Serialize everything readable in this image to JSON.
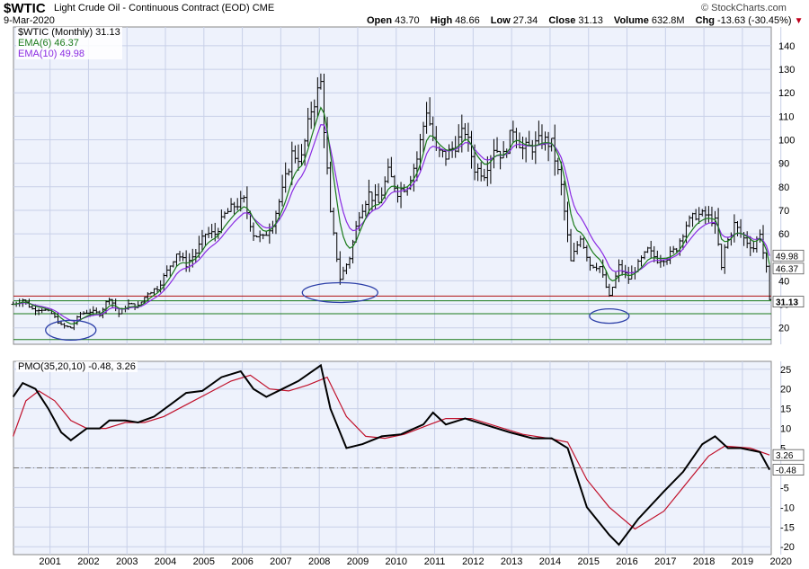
{
  "header": {
    "symbol": "$WTIC",
    "title": "Light Crude Oil - Continuous Contract (EOD)",
    "exchange": "CME",
    "date": "9-Mar-2020",
    "brand": "© StockCharts.com",
    "open_label": "Open",
    "open": "43.70",
    "high_label": "High",
    "high": "48.66",
    "low_label": "Low",
    "low": "27.34",
    "close_label": "Close",
    "close": "31.13",
    "volume_label": "Volume",
    "volume": "632.8M",
    "chg_label": "Chg",
    "chg": "-13.63 (-30.45%)"
  },
  "legend": {
    "price": "$WTIC (Monthly) 31.13",
    "ema6": "EMA(6) 46.37",
    "ema10": "EMA(10) 49.98",
    "pmo": "PMO(35,20,10) -0.48, 3.26"
  },
  "colors": {
    "price": "#000000",
    "ema6": "#1a7a1a",
    "ema10": "#8a2be2",
    "pmo": "#000000",
    "pmo_signal": "#c0102a",
    "grid": "#c8d0e8",
    "panel_bg": "#eef2fc",
    "annotation": "#2c3fa8",
    "hline_red": "#b01010",
    "hline_green": "#1a7a1a"
  },
  "chart_data": [
    {
      "type": "ohlc",
      "title": "$WTIC (Monthly) 31.13",
      "x_axis": "date",
      "x_ticks": [
        "2001",
        "2002",
        "2003",
        "2004",
        "2005",
        "2006",
        "2007",
        "2008",
        "2009",
        "2010",
        "2011",
        "2012",
        "2013",
        "2014",
        "2015",
        "2016",
        "2017",
        "2018",
        "2019",
        "2020"
      ],
      "y_ticks": [
        20,
        30,
        40,
        50,
        60,
        70,
        80,
        90,
        100,
        110,
        120,
        130,
        140
      ],
      "ylim": [
        13,
        148
      ],
      "close_series": [
        [
          "2000-07",
          30
        ],
        [
          "2000-10",
          32
        ],
        [
          "2001-01",
          28
        ],
        [
          "2001-04",
          28
        ],
        [
          "2001-07",
          26
        ],
        [
          "2001-10",
          21
        ],
        [
          "2002-01",
          20
        ],
        [
          "2002-04",
          26
        ],
        [
          "2002-07",
          27
        ],
        [
          "2002-10",
          26
        ],
        [
          "2003-01",
          33
        ],
        [
          "2003-04",
          26
        ],
        [
          "2003-07",
          30
        ],
        [
          "2003-10",
          29
        ],
        [
          "2004-01",
          35
        ],
        [
          "2004-04",
          37
        ],
        [
          "2004-07",
          44
        ],
        [
          "2004-10",
          52
        ],
        [
          "2005-01",
          47
        ],
        [
          "2005-04",
          52
        ],
        [
          "2005-07",
          60
        ],
        [
          "2005-10",
          60
        ],
        [
          "2006-01",
          68
        ],
        [
          "2006-04",
          72
        ],
        [
          "2006-07",
          74
        ],
        [
          "2006-10",
          60
        ],
        [
          "2007-01",
          58
        ],
        [
          "2007-04",
          65
        ],
        [
          "2007-07",
          78
        ],
        [
          "2007-10",
          94
        ],
        [
          "2008-01",
          92
        ],
        [
          "2008-04",
          113
        ],
        [
          "2008-07",
          124
        ],
        [
          "2008-10",
          68
        ],
        [
          "2009-01",
          41
        ],
        [
          "2009-04",
          50
        ],
        [
          "2009-07",
          69
        ],
        [
          "2009-10",
          77
        ],
        [
          "2010-01",
          73
        ],
        [
          "2010-04",
          86
        ],
        [
          "2010-07",
          78
        ],
        [
          "2010-10",
          81
        ],
        [
          "2011-01",
          92
        ],
        [
          "2011-04",
          113
        ],
        [
          "2011-07",
          95
        ],
        [
          "2011-10",
          93
        ],
        [
          "2012-01",
          98
        ],
        [
          "2012-04",
          104
        ],
        [
          "2012-07",
          88
        ],
        [
          "2012-10",
          86
        ],
        [
          "2013-01",
          97
        ],
        [
          "2013-04",
          93
        ],
        [
          "2013-07",
          105
        ],
        [
          "2013-10",
          96
        ],
        [
          "2014-01",
          97
        ],
        [
          "2014-04",
          100
        ],
        [
          "2014-07",
          98
        ],
        [
          "2014-10",
          80
        ],
        [
          "2015-01",
          48
        ],
        [
          "2015-04",
          59
        ],
        [
          "2015-07",
          47
        ],
        [
          "2015-10",
          46
        ],
        [
          "2016-01",
          33
        ],
        [
          "2016-04",
          46
        ],
        [
          "2016-07",
          41
        ],
        [
          "2016-10",
          47
        ],
        [
          "2017-01",
          53
        ],
        [
          "2017-04",
          49
        ],
        [
          "2017-07",
          50
        ],
        [
          "2017-10",
          54
        ],
        [
          "2018-01",
          64
        ],
        [
          "2018-04",
          68
        ],
        [
          "2018-07",
          68
        ],
        [
          "2018-10",
          65
        ],
        [
          "2018-12",
          45
        ],
        [
          "2019-01",
          54
        ],
        [
          "2019-04",
          64
        ],
        [
          "2019-07",
          58
        ],
        [
          "2019-10",
          54
        ],
        [
          "2019-12",
          61
        ],
        [
          "2020-01",
          52
        ],
        [
          "2020-02",
          45
        ],
        [
          "2020-03",
          31.13
        ]
      ],
      "ema6_last": 46.37,
      "ema10_last": 49.98,
      "last_price": 31.13,
      "horizontal_lines": [
        {
          "value": 33.5,
          "color": "red"
        },
        {
          "value": 31.5,
          "color": "green"
        },
        {
          "value": 26.0,
          "color": "green"
        },
        {
          "value": 15.0,
          "color": "green"
        }
      ],
      "annotations": [
        {
          "type": "ellipse",
          "center_date": "2002-01",
          "value": 19
        },
        {
          "type": "ellipse",
          "center_date": "2009-01",
          "value": 35
        },
        {
          "type": "ellipse",
          "center_date": "2016-01",
          "value": 25
        }
      ]
    },
    {
      "type": "line",
      "title": "PMO(35,20,10) -0.48, 3.26",
      "y_ticks": [
        -20,
        -15,
        -10,
        -5,
        0,
        5,
        10,
        15,
        20,
        25
      ],
      "ylim": [
        -22,
        27
      ],
      "zero_line": true,
      "series": [
        {
          "name": "PMO(35,20,10)",
          "points": [
            [
              "2000-07",
              18
            ],
            [
              "2000-10",
              21.5
            ],
            [
              "2001-02",
              20
            ],
            [
              "2001-06",
              15
            ],
            [
              "2001-10",
              9
            ],
            [
              "2002-01",
              7
            ],
            [
              "2002-06",
              10
            ],
            [
              "2002-10",
              10
            ],
            [
              "2003-01",
              12
            ],
            [
              "2003-06",
              12
            ],
            [
              "2003-10",
              11.5
            ],
            [
              "2004-03",
              13
            ],
            [
              "2004-08",
              16
            ],
            [
              "2005-01",
              19
            ],
            [
              "2005-06",
              19.5
            ],
            [
              "2005-12",
              23
            ],
            [
              "2006-06",
              24.5
            ],
            [
              "2006-10",
              20
            ],
            [
              "2007-02",
              18
            ],
            [
              "2007-07",
              20
            ],
            [
              "2007-12",
              22
            ],
            [
              "2008-07",
              26
            ],
            [
              "2008-10",
              15
            ],
            [
              "2009-03",
              5
            ],
            [
              "2009-08",
              6
            ],
            [
              "2010-02",
              8
            ],
            [
              "2010-08",
              8.5
            ],
            [
              "2011-03",
              11
            ],
            [
              "2011-06",
              14
            ],
            [
              "2011-10",
              11
            ],
            [
              "2012-04",
              12.5
            ],
            [
              "2012-10",
              11
            ],
            [
              "2013-06",
              9
            ],
            [
              "2014-01",
              7.5
            ],
            [
              "2014-07",
              7.5
            ],
            [
              "2014-12",
              5
            ],
            [
              "2015-06",
              -10
            ],
            [
              "2016-01",
              -17
            ],
            [
              "2016-04",
              -19.5
            ],
            [
              "2016-10",
              -13
            ],
            [
              "2017-06",
              -6
            ],
            [
              "2017-12",
              -1
            ],
            [
              "2018-06",
              6
            ],
            [
              "2018-10",
              8
            ],
            [
              "2019-02",
              5
            ],
            [
              "2019-06",
              5
            ],
            [
              "2019-12",
              4
            ],
            [
              "2020-03",
              -0.48
            ]
          ]
        },
        {
          "name": "Signal",
          "points": [
            [
              "2000-07",
              8
            ],
            [
              "2000-11",
              17
            ],
            [
              "2001-03",
              19.5
            ],
            [
              "2001-08",
              17
            ],
            [
              "2002-01",
              12
            ],
            [
              "2002-06",
              10
            ],
            [
              "2002-12",
              10
            ],
            [
              "2003-06",
              11.5
            ],
            [
              "2003-12",
              11.5
            ],
            [
              "2004-06",
              13
            ],
            [
              "2005-01",
              16
            ],
            [
              "2005-08",
              19
            ],
            [
              "2006-03",
              22
            ],
            [
              "2006-09",
              23.5
            ],
            [
              "2007-03",
              20
            ],
            [
              "2007-09",
              19.5
            ],
            [
              "2008-03",
              21
            ],
            [
              "2008-09",
              23
            ],
            [
              "2009-03",
              13
            ],
            [
              "2009-09",
              8
            ],
            [
              "2010-03",
              7.5
            ],
            [
              "2010-09",
              8.5
            ],
            [
              "2011-05",
              11
            ],
            [
              "2011-10",
              12.5
            ],
            [
              "2012-06",
              12.5
            ],
            [
              "2013-02",
              10.5
            ],
            [
              "2013-10",
              8.5
            ],
            [
              "2014-06",
              7.5
            ],
            [
              "2014-12",
              6.5
            ],
            [
              "2015-06",
              -3
            ],
            [
              "2016-01",
              -10
            ],
            [
              "2016-09",
              -15.5
            ],
            [
              "2017-06",
              -11
            ],
            [
              "2018-01",
              -4
            ],
            [
              "2018-08",
              3
            ],
            [
              "2019-01",
              5.5
            ],
            [
              "2019-09",
              5
            ],
            [
              "2020-03",
              3.26
            ]
          ]
        }
      ],
      "last_values": {
        "pmo": -0.48,
        "signal": 3.26
      }
    }
  ]
}
